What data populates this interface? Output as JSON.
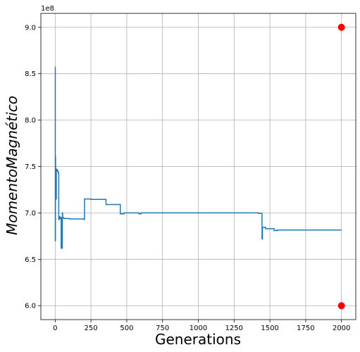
{
  "chart_data": {
    "type": "line",
    "title": "",
    "xlabel": "Generations",
    "ylabel": "MomentoMagnético",
    "y_offset_label": "1e8",
    "xlim": [
      -100,
      2100
    ],
    "ylim": [
      5.85,
      9.15
    ],
    "x_ticks": [
      0,
      250,
      500,
      750,
      1000,
      1250,
      1500,
      1750,
      2000
    ],
    "x_tick_labels": [
      "0",
      "250",
      "500",
      "750",
      "1000",
      "1250",
      "1500",
      "1750",
      "2000"
    ],
    "y_ticks": [
      6.0,
      6.5,
      7.0,
      7.5,
      8.0,
      8.5,
      9.0
    ],
    "y_tick_labels": [
      "6.0",
      "6.5",
      "7.0",
      "7.5",
      "8.0",
      "8.5",
      "9.0"
    ],
    "grid": true,
    "colors": {
      "line": "#1f77b4",
      "markers": "#ff0000",
      "grid": "#b0b0b0"
    },
    "series": [
      {
        "kind": "step-line",
        "x": [
          0,
          1,
          2,
          3,
          5,
          8,
          12,
          15,
          22,
          25,
          30,
          32,
          35,
          38,
          42,
          45,
          48,
          50,
          52,
          55,
          60,
          80,
          100,
          120,
          200,
          205,
          210,
          250,
          300,
          350,
          355,
          450,
          455,
          460,
          480,
          580,
          585,
          600,
          1400,
          1420,
          1440,
          1445,
          1448,
          1450,
          1470,
          1500,
          1530,
          1540,
          1550,
          1600,
          2000
        ],
        "y": [
          8.57,
          6.7,
          7.6,
          7.47,
          7.15,
          7.47,
          7.47,
          7.45,
          7.43,
          6.93,
          6.96,
          6.95,
          6.95,
          6.94,
          6.62,
          6.95,
          6.62,
          7.0,
          6.95,
          6.95,
          6.94,
          6.94,
          6.935,
          6.935,
          6.93,
          7.15,
          7.15,
          7.145,
          7.145,
          7.145,
          7.09,
          7.09,
          6.99,
          6.99,
          7.0,
          7.0,
          6.99,
          7.0,
          7.0,
          6.995,
          6.995,
          6.72,
          6.845,
          6.845,
          6.83,
          6.83,
          6.81,
          6.81,
          6.815,
          6.815,
          6.815
        ]
      },
      {
        "kind": "markers",
        "x": [
          2000,
          2000
        ],
        "y": [
          9.0,
          6.0
        ]
      }
    ]
  }
}
